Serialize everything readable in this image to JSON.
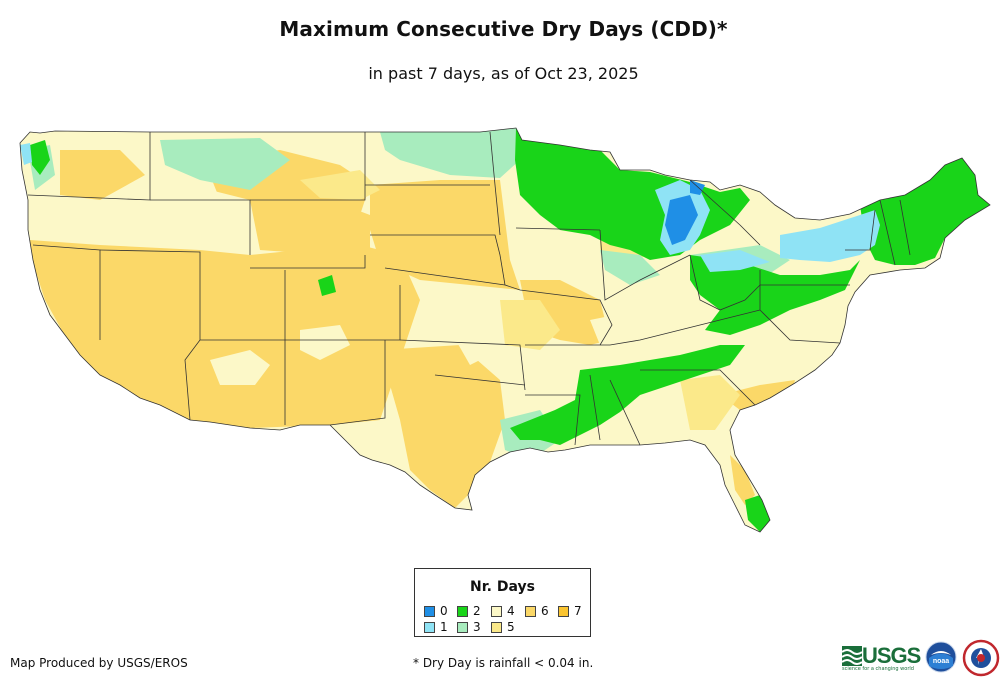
{
  "title": "Maximum Consecutive Dry Days (CDD)*",
  "subtitle": "in past 7 days, as of Oct 23, 2025",
  "legend": {
    "title": "Nr. Days",
    "items": [
      {
        "label": "0",
        "color": "#1f8fe6"
      },
      {
        "label": "1",
        "color": "#8fe3f5"
      },
      {
        "label": "2",
        "color": "#19d419"
      },
      {
        "label": "3",
        "color": "#a8ecbe"
      },
      {
        "label": "4",
        "color": "#fcf8c8"
      },
      {
        "label": "5",
        "color": "#fbe98a"
      },
      {
        "label": "6",
        "color": "#fbd868"
      },
      {
        "label": "7",
        "color": "#fbc531"
      }
    ]
  },
  "credit": "Map Produced by USGS/EROS",
  "footnote": "* Dry Day is rainfall < 0.04 in.",
  "logos": {
    "usgs": "USGS",
    "usgs_tagline": "science for a changing world",
    "noaa": "noaa",
    "nws": "NATIONAL WEATHER SERVICE"
  }
}
